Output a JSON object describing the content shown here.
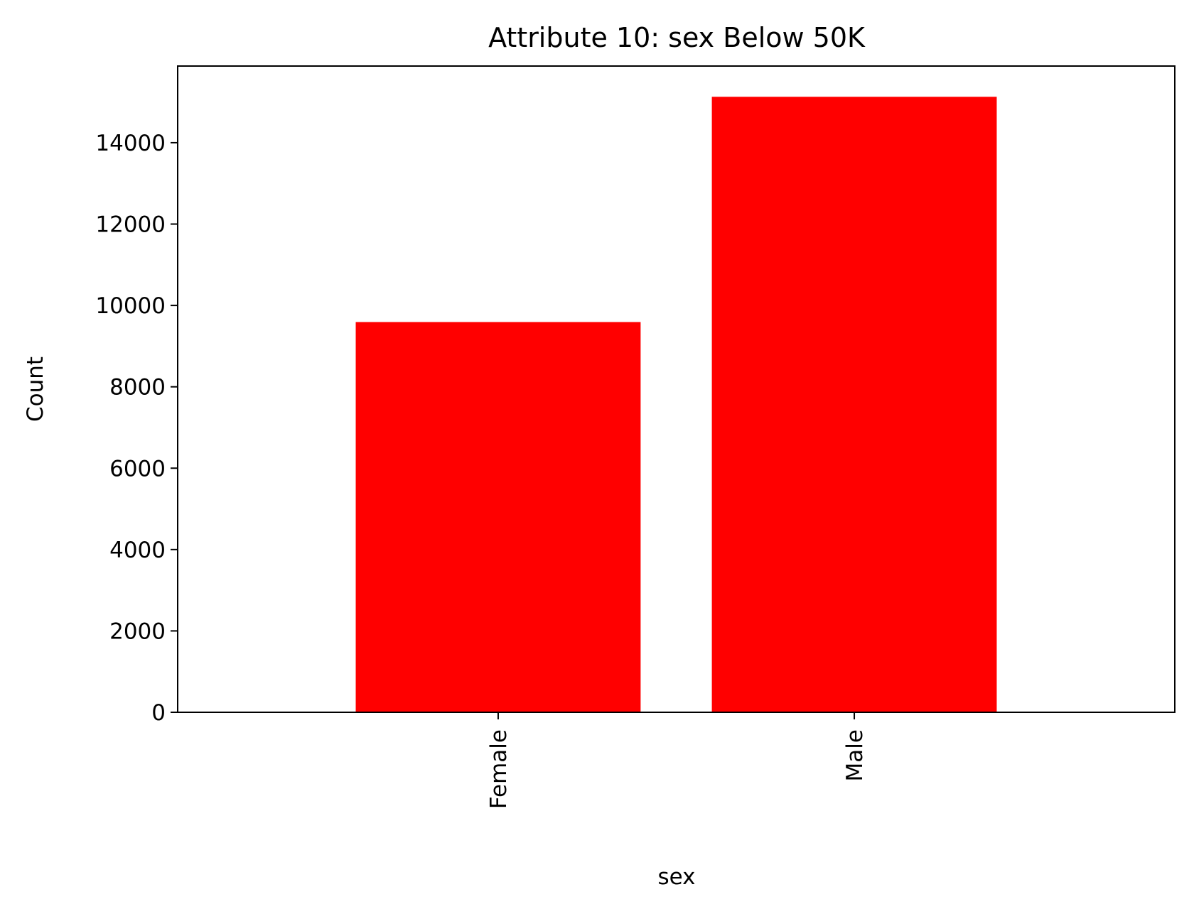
{
  "chart_data": {
    "type": "bar",
    "title": "Attribute 10: sex Below 50K",
    "xlabel": "sex",
    "ylabel": "Count",
    "categories": [
      "Female",
      "Male"
    ],
    "values": [
      9592,
      15128
    ],
    "ylim": [
      0,
      15884
    ],
    "yticks": [
      0,
      2000,
      4000,
      6000,
      8000,
      10000,
      12000,
      14000
    ],
    "bar_color": "#ff0000",
    "grid": false,
    "legend": "none"
  }
}
